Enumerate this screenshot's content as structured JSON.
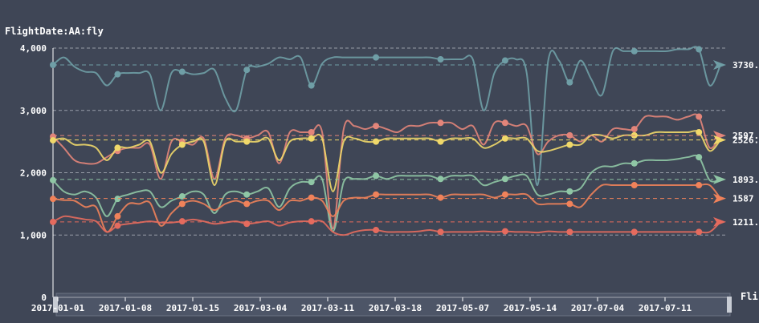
{
  "chart_data": {
    "type": "line",
    "title": "FlightDate:AA:fly",
    "xlabel": "Fli",
    "ylabel": "",
    "ylim": [
      0,
      4000
    ],
    "yticks": [
      0,
      1000,
      2000,
      3000,
      4000
    ],
    "ytick_labels": [
      "0",
      "1,000",
      "2,000",
      "3,000",
      "4,000"
    ],
    "xtick_labels": [
      "2017-01-01",
      "2017-01-08",
      "2017-01-15",
      "2017-03-04",
      "2017-03-11",
      "2017-03-18",
      "2017-05-07",
      "2017-05-14",
      "2017-07-04",
      "2017-07-11"
    ],
    "grid": true,
    "legend": "none",
    "series": [
      {
        "color": "#6f9ea6",
        "mark_line": 3730,
        "mark_label": "3730.",
        "values": [
          3730,
          3850,
          3700,
          3620,
          3600,
          3400,
          3580,
          3600,
          3600,
          3580,
          3000,
          3600,
          3620,
          3580,
          3600,
          3650,
          3200,
          3000,
          3650,
          3700,
          3750,
          3850,
          3820,
          3850,
          3400,
          3750,
          3850,
          3850,
          3850,
          3850,
          3850,
          3850,
          3850,
          3850,
          3850,
          3850,
          3820,
          3820,
          3820,
          3820,
          3000,
          3600,
          3800,
          3820,
          3600,
          1800,
          3800,
          3800,
          3450,
          3800,
          3500,
          3250,
          3950,
          3950,
          3950,
          3950,
          3950,
          3950,
          3980,
          3980,
          3980,
          3400,
          3730
        ]
      },
      {
        "color": "#e3857a",
        "mark_line": 2597,
        "mark_label": "2597.",
        "values": [
          2580,
          2400,
          2200,
          2150,
          2150,
          2250,
          2350,
          2400,
          2400,
          2450,
          1900,
          2500,
          2500,
          2450,
          2550,
          1900,
          2550,
          2600,
          2550,
          2600,
          2650,
          2150,
          2650,
          2650,
          2650,
          2650,
          1100,
          2700,
          2750,
          2700,
          2750,
          2700,
          2650,
          2750,
          2750,
          2800,
          2800,
          2800,
          2700,
          2750,
          2450,
          2800,
          2800,
          2750,
          2750,
          2300,
          2500,
          2600,
          2600,
          2500,
          2600,
          2500,
          2700,
          2700,
          2700,
          2900,
          2900,
          2900,
          2850,
          2900,
          2900,
          2400,
          2597
        ]
      },
      {
        "color": "#f0d86a",
        "mark_line": 2526,
        "mark_label": "2526.",
        "values": [
          2520,
          2550,
          2450,
          2450,
          2400,
          2200,
          2400,
          2400,
          2450,
          2500,
          2000,
          2300,
          2450,
          2500,
          2500,
          1800,
          2500,
          2500,
          2500,
          2500,
          2550,
          2200,
          2500,
          2550,
          2550,
          2550,
          1700,
          2500,
          2550,
          2500,
          2500,
          2550,
          2550,
          2550,
          2550,
          2550,
          2500,
          2550,
          2550,
          2550,
          2400,
          2450,
          2550,
          2550,
          2550,
          2350,
          2350,
          2400,
          2450,
          2450,
          2600,
          2600,
          2550,
          2600,
          2600,
          2600,
          2650,
          2650,
          2650,
          2650,
          2650,
          2350,
          2526
        ]
      },
      {
        "color": "#8fc6a5",
        "mark_line": 1893,
        "mark_label": "1893.",
        "values": [
          1880,
          1700,
          1650,
          1700,
          1600,
          1300,
          1580,
          1650,
          1700,
          1700,
          1450,
          1550,
          1620,
          1700,
          1650,
          1350,
          1650,
          1700,
          1650,
          1700,
          1750,
          1450,
          1750,
          1850,
          1850,
          1900,
          1060,
          1850,
          1900,
          1900,
          1950,
          1900,
          1950,
          1950,
          1950,
          1950,
          1900,
          1950,
          1950,
          1950,
          1800,
          1850,
          1900,
          1950,
          1950,
          1650,
          1650,
          1700,
          1700,
          1750,
          2000,
          2100,
          2100,
          2150,
          2150,
          2200,
          2200,
          2200,
          2220,
          2250,
          2250,
          1880,
          1893
        ]
      },
      {
        "color": "#f0825a",
        "mark_line": 1587,
        "mark_label": "1587",
        "values": [
          1580,
          1560,
          1550,
          1450,
          1450,
          1050,
          1300,
          1500,
          1500,
          1520,
          1150,
          1350,
          1500,
          1550,
          1500,
          1400,
          1500,
          1550,
          1500,
          1550,
          1550,
          1400,
          1550,
          1550,
          1600,
          1550,
          1300,
          1550,
          1600,
          1600,
          1650,
          1650,
          1650,
          1650,
          1650,
          1650,
          1600,
          1650,
          1650,
          1650,
          1650,
          1600,
          1650,
          1650,
          1650,
          1500,
          1500,
          1500,
          1500,
          1450,
          1650,
          1800,
          1800,
          1800,
          1800,
          1800,
          1800,
          1800,
          1800,
          1800,
          1800,
          1800,
          1587
        ]
      },
      {
        "color": "#e56b5e",
        "mark_line": 1211,
        "mark_label": "1211.",
        "values": [
          1210,
          1300,
          1280,
          1250,
          1220,
          1050,
          1150,
          1180,
          1200,
          1220,
          1200,
          1200,
          1220,
          1250,
          1220,
          1180,
          1200,
          1220,
          1180,
          1200,
          1220,
          1150,
          1200,
          1220,
          1220,
          1220,
          1050,
          1000,
          1050,
          1080,
          1080,
          1050,
          1050,
          1050,
          1060,
          1080,
          1050,
          1050,
          1050,
          1050,
          1060,
          1050,
          1060,
          1050,
          1050,
          1040,
          1060,
          1050,
          1050,
          1050,
          1050,
          1050,
          1050,
          1050,
          1050,
          1050,
          1050,
          1050,
          1050,
          1050,
          1050,
          1050,
          1211
        ]
      }
    ]
  }
}
